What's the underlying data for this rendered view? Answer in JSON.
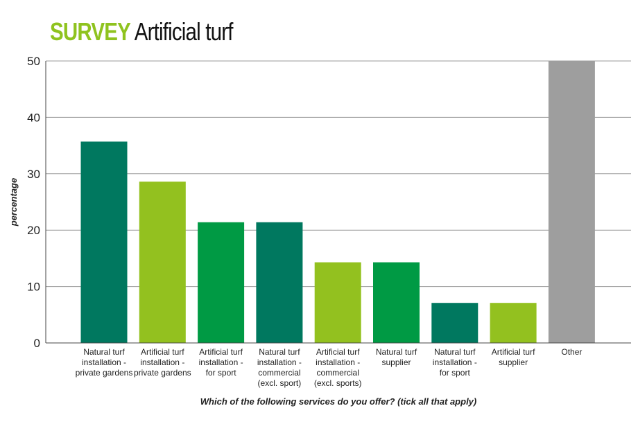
{
  "title": {
    "kicker": "SURVEY",
    "main": "Artificial turf"
  },
  "colors": {
    "dark_green": "#00785f",
    "lime_green": "#93c11f",
    "mid_green": "#009a44",
    "grey": "#9e9e9e",
    "kicker": "#8fc31f"
  },
  "chart_data": {
    "type": "bar",
    "title": "SURVEY Artificial turf",
    "xlabel": "Which of the following services do you offer? (tick all that apply)",
    "ylabel": "percentage",
    "ylim": [
      0,
      50
    ],
    "yticks": [
      0,
      10,
      20,
      30,
      40,
      50
    ],
    "grid": true,
    "categories": [
      [
        "Natural turf",
        "installation -",
        "private gardens"
      ],
      [
        "Artificial turf",
        "installation -",
        "private gardens"
      ],
      [
        "Artificial turf",
        "installation -",
        "for sport"
      ],
      [
        "Natural turf",
        "installation -",
        "commercial",
        "(excl. sport)"
      ],
      [
        "Artificial turf",
        "installation -",
        "commercial",
        "(excl. sports)"
      ],
      [
        "Natural turf",
        "supplier"
      ],
      [
        "Natural turf",
        "installation -",
        "for sport"
      ],
      [
        "Artificial turf",
        "supplier"
      ],
      [
        "Other"
      ]
    ],
    "values": [
      35.7,
      28.6,
      21.4,
      21.4,
      14.3,
      14.3,
      7.1,
      7.1,
      50
    ],
    "bar_colors": [
      "dark_green",
      "lime_green",
      "mid_green",
      "dark_green",
      "lime_green",
      "mid_green",
      "dark_green",
      "lime_green",
      "grey"
    ]
  }
}
